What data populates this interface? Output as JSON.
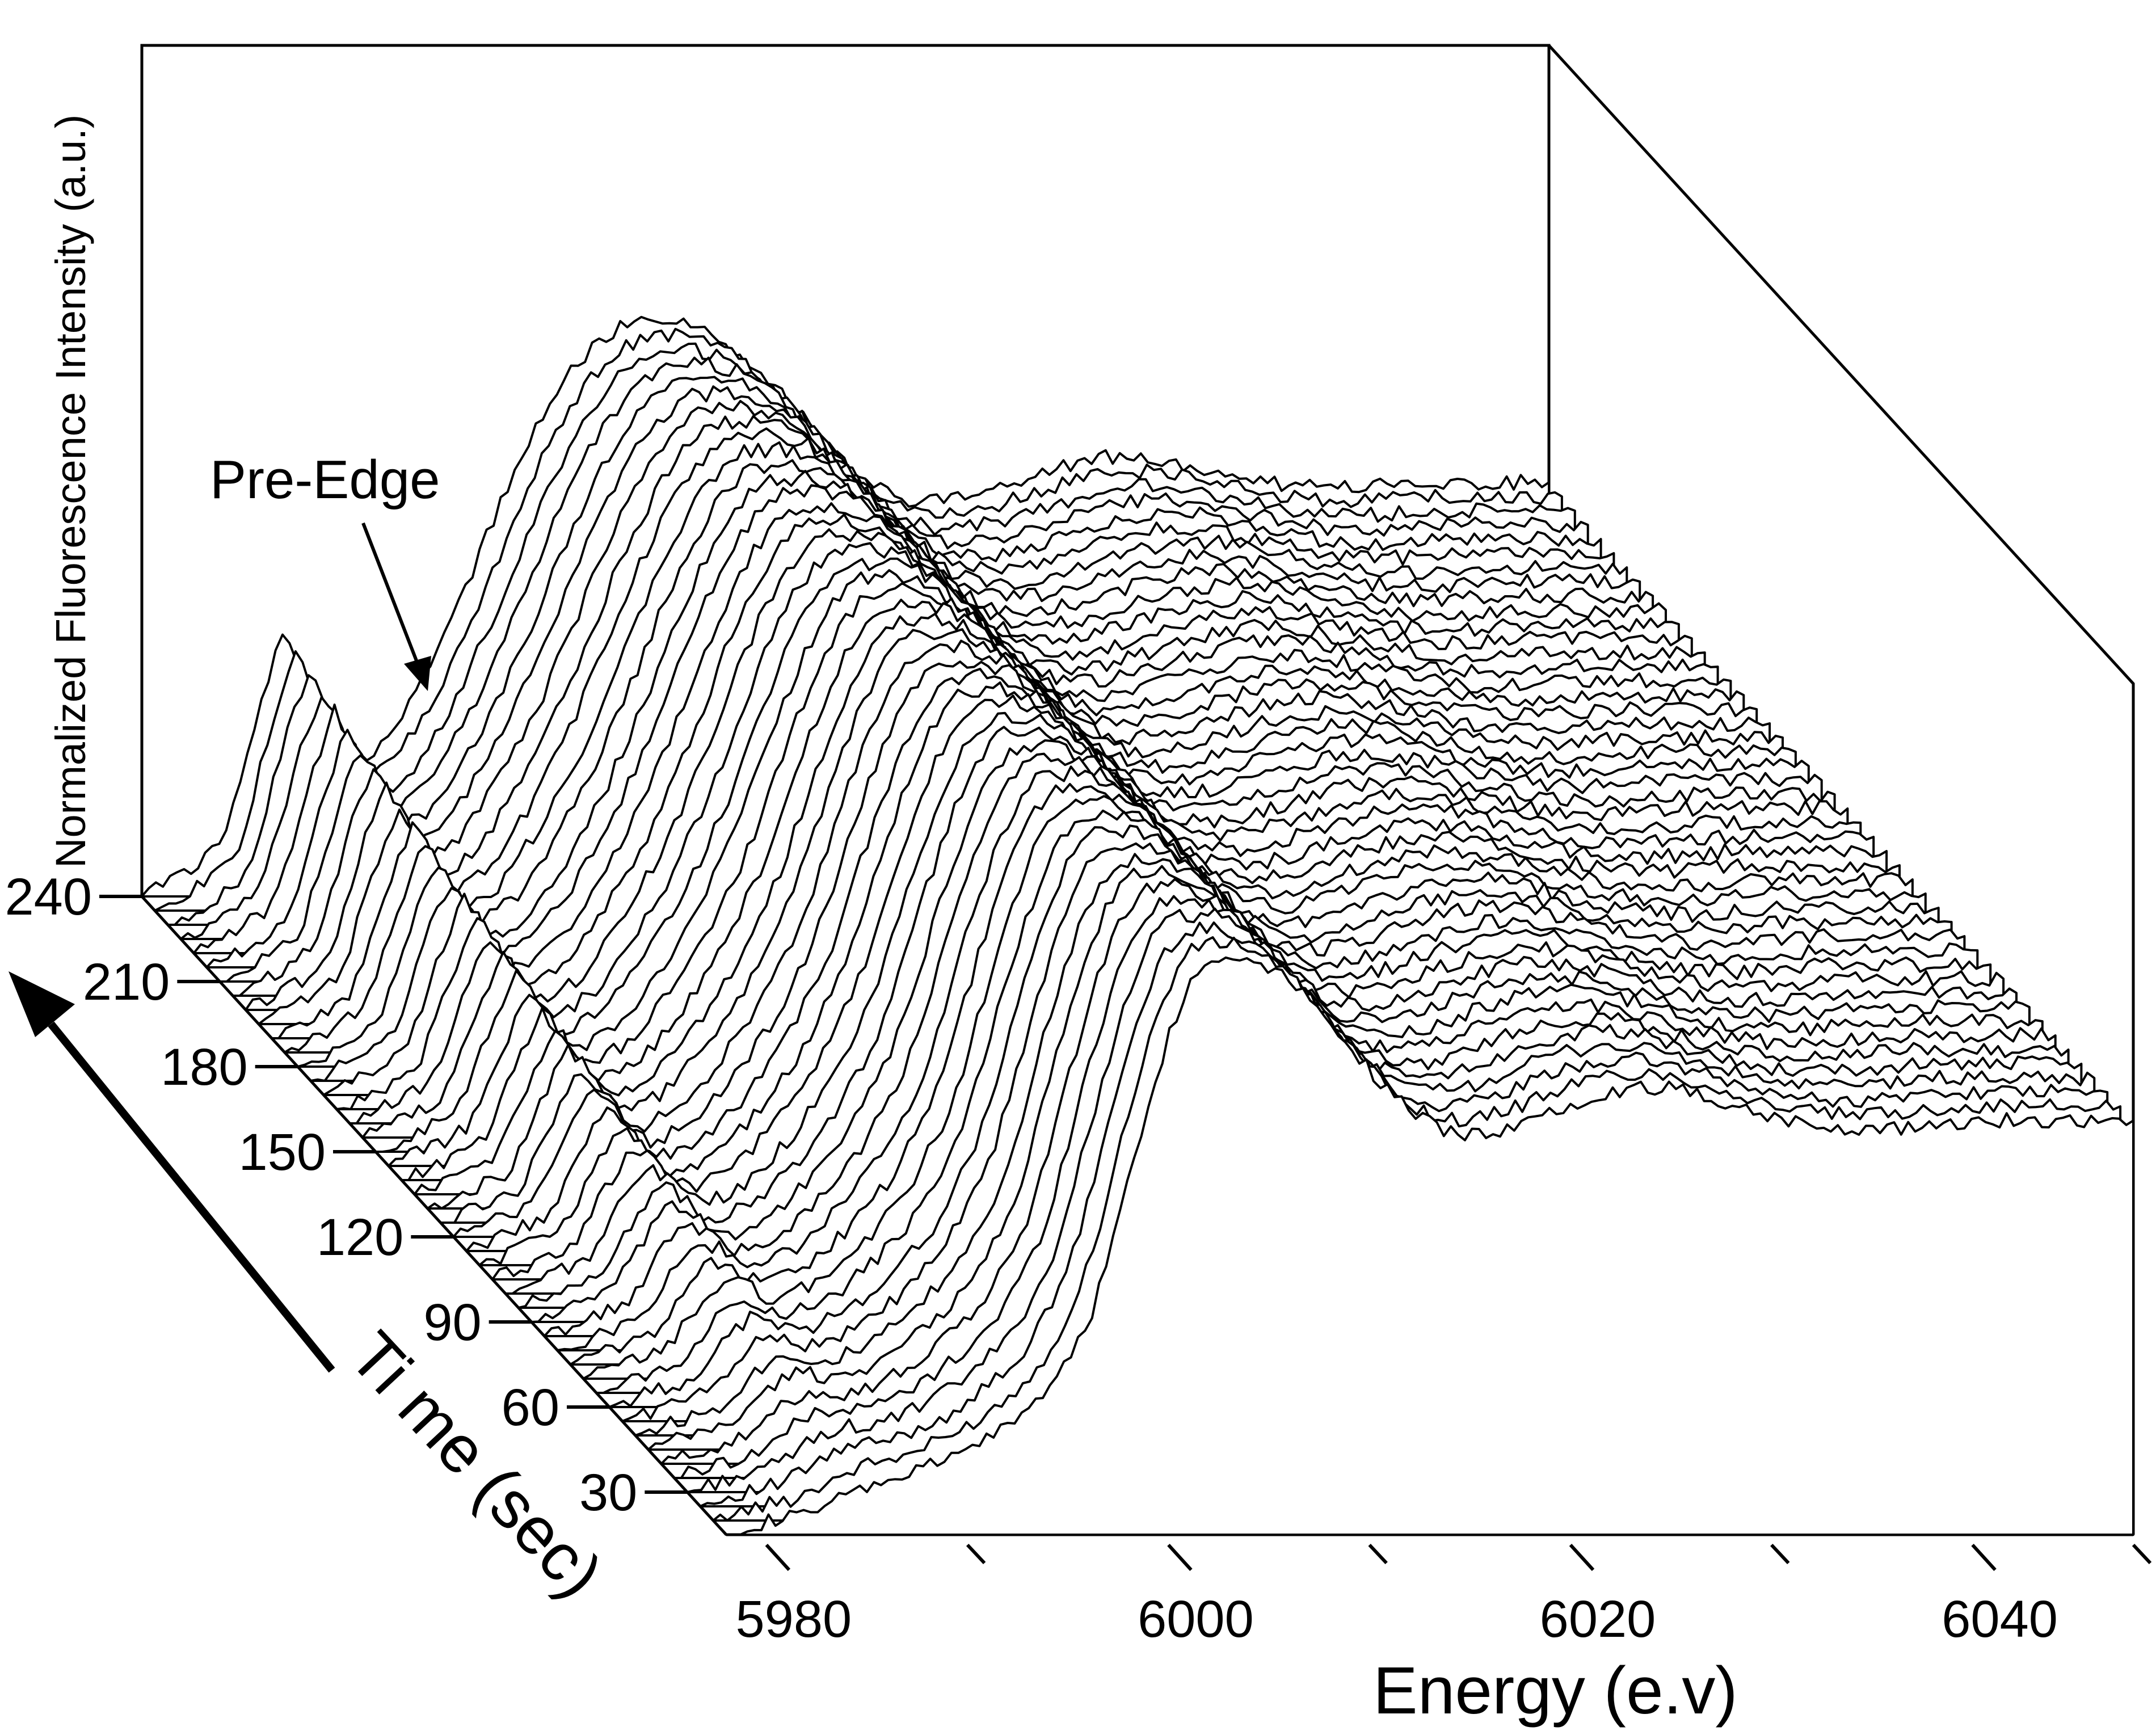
{
  "chart_data": {
    "type": "waterfall-line",
    "title": "",
    "xlabel": "Energy (e.v)",
    "ylabel": "Normalized Fluorescence Intensity (a.u.)",
    "zlabel": "Ti me (sec)",
    "x_ticks": [
      "5980",
      "6000",
      "6020",
      "6040"
    ],
    "z_ticks": [
      "30",
      "60",
      "90",
      "120",
      "150",
      "180",
      "210",
      "240"
    ],
    "xlim": [
      5978,
      6048
    ],
    "zlim": [
      15,
      240
    ],
    "ylim": [
      0,
      1.45
    ],
    "trace_interval_sec": 5,
    "annotations": [
      {
        "text": "Pre-Edge",
        "x": 5985,
        "time": 240
      }
    ],
    "series": [
      {
        "time_range": [
          15,
          240
        ],
        "energy": [
          5978,
          5980,
          5982,
          5983,
          5984,
          5985,
          5986,
          5987,
          5988,
          5990,
          5992,
          5994,
          5996,
          5997,
          5998,
          5999,
          6000,
          6001,
          6002,
          6004,
          6006,
          6008,
          6010,
          6012,
          6014,
          6016,
          6018,
          6020,
          6022,
          6024,
          6026,
          6028,
          6030,
          6032,
          6034,
          6036,
          6038,
          6040,
          6042,
          6044,
          6046,
          6048
        ],
        "intensity_first_trace": [
          0.0,
          0.03,
          0.05,
          0.07,
          0.09,
          0.11,
          0.13,
          0.14,
          0.16,
          0.2,
          0.26,
          0.34,
          0.5,
          0.65,
          0.84,
          1.02,
          1.18,
          1.3,
          1.36,
          1.37,
          1.32,
          1.22,
          1.1,
          1.0,
          0.95,
          0.95,
          0.98,
          1.02,
          1.05,
          1.06,
          1.05,
          1.02,
          0.99,
          0.97,
          0.96,
          0.96,
          0.97,
          0.98,
          0.98,
          0.98,
          0.98,
          0.98
        ],
        "intensity_last_trace": [
          0.0,
          0.05,
          0.12,
          0.3,
          0.48,
          0.62,
          0.52,
          0.36,
          0.3,
          0.36,
          0.52,
          0.72,
          0.95,
          1.06,
          1.15,
          1.22,
          1.28,
          1.32,
          1.35,
          1.36,
          1.34,
          1.27,
          1.18,
          1.07,
          0.98,
          0.94,
          0.94,
          0.96,
          0.99,
          1.02,
          1.04,
          1.04,
          1.02,
          1.0,
          0.98,
          0.97,
          0.97,
          0.98,
          0.98,
          0.98,
          0.98,
          0.98
        ]
      }
    ]
  }
}
